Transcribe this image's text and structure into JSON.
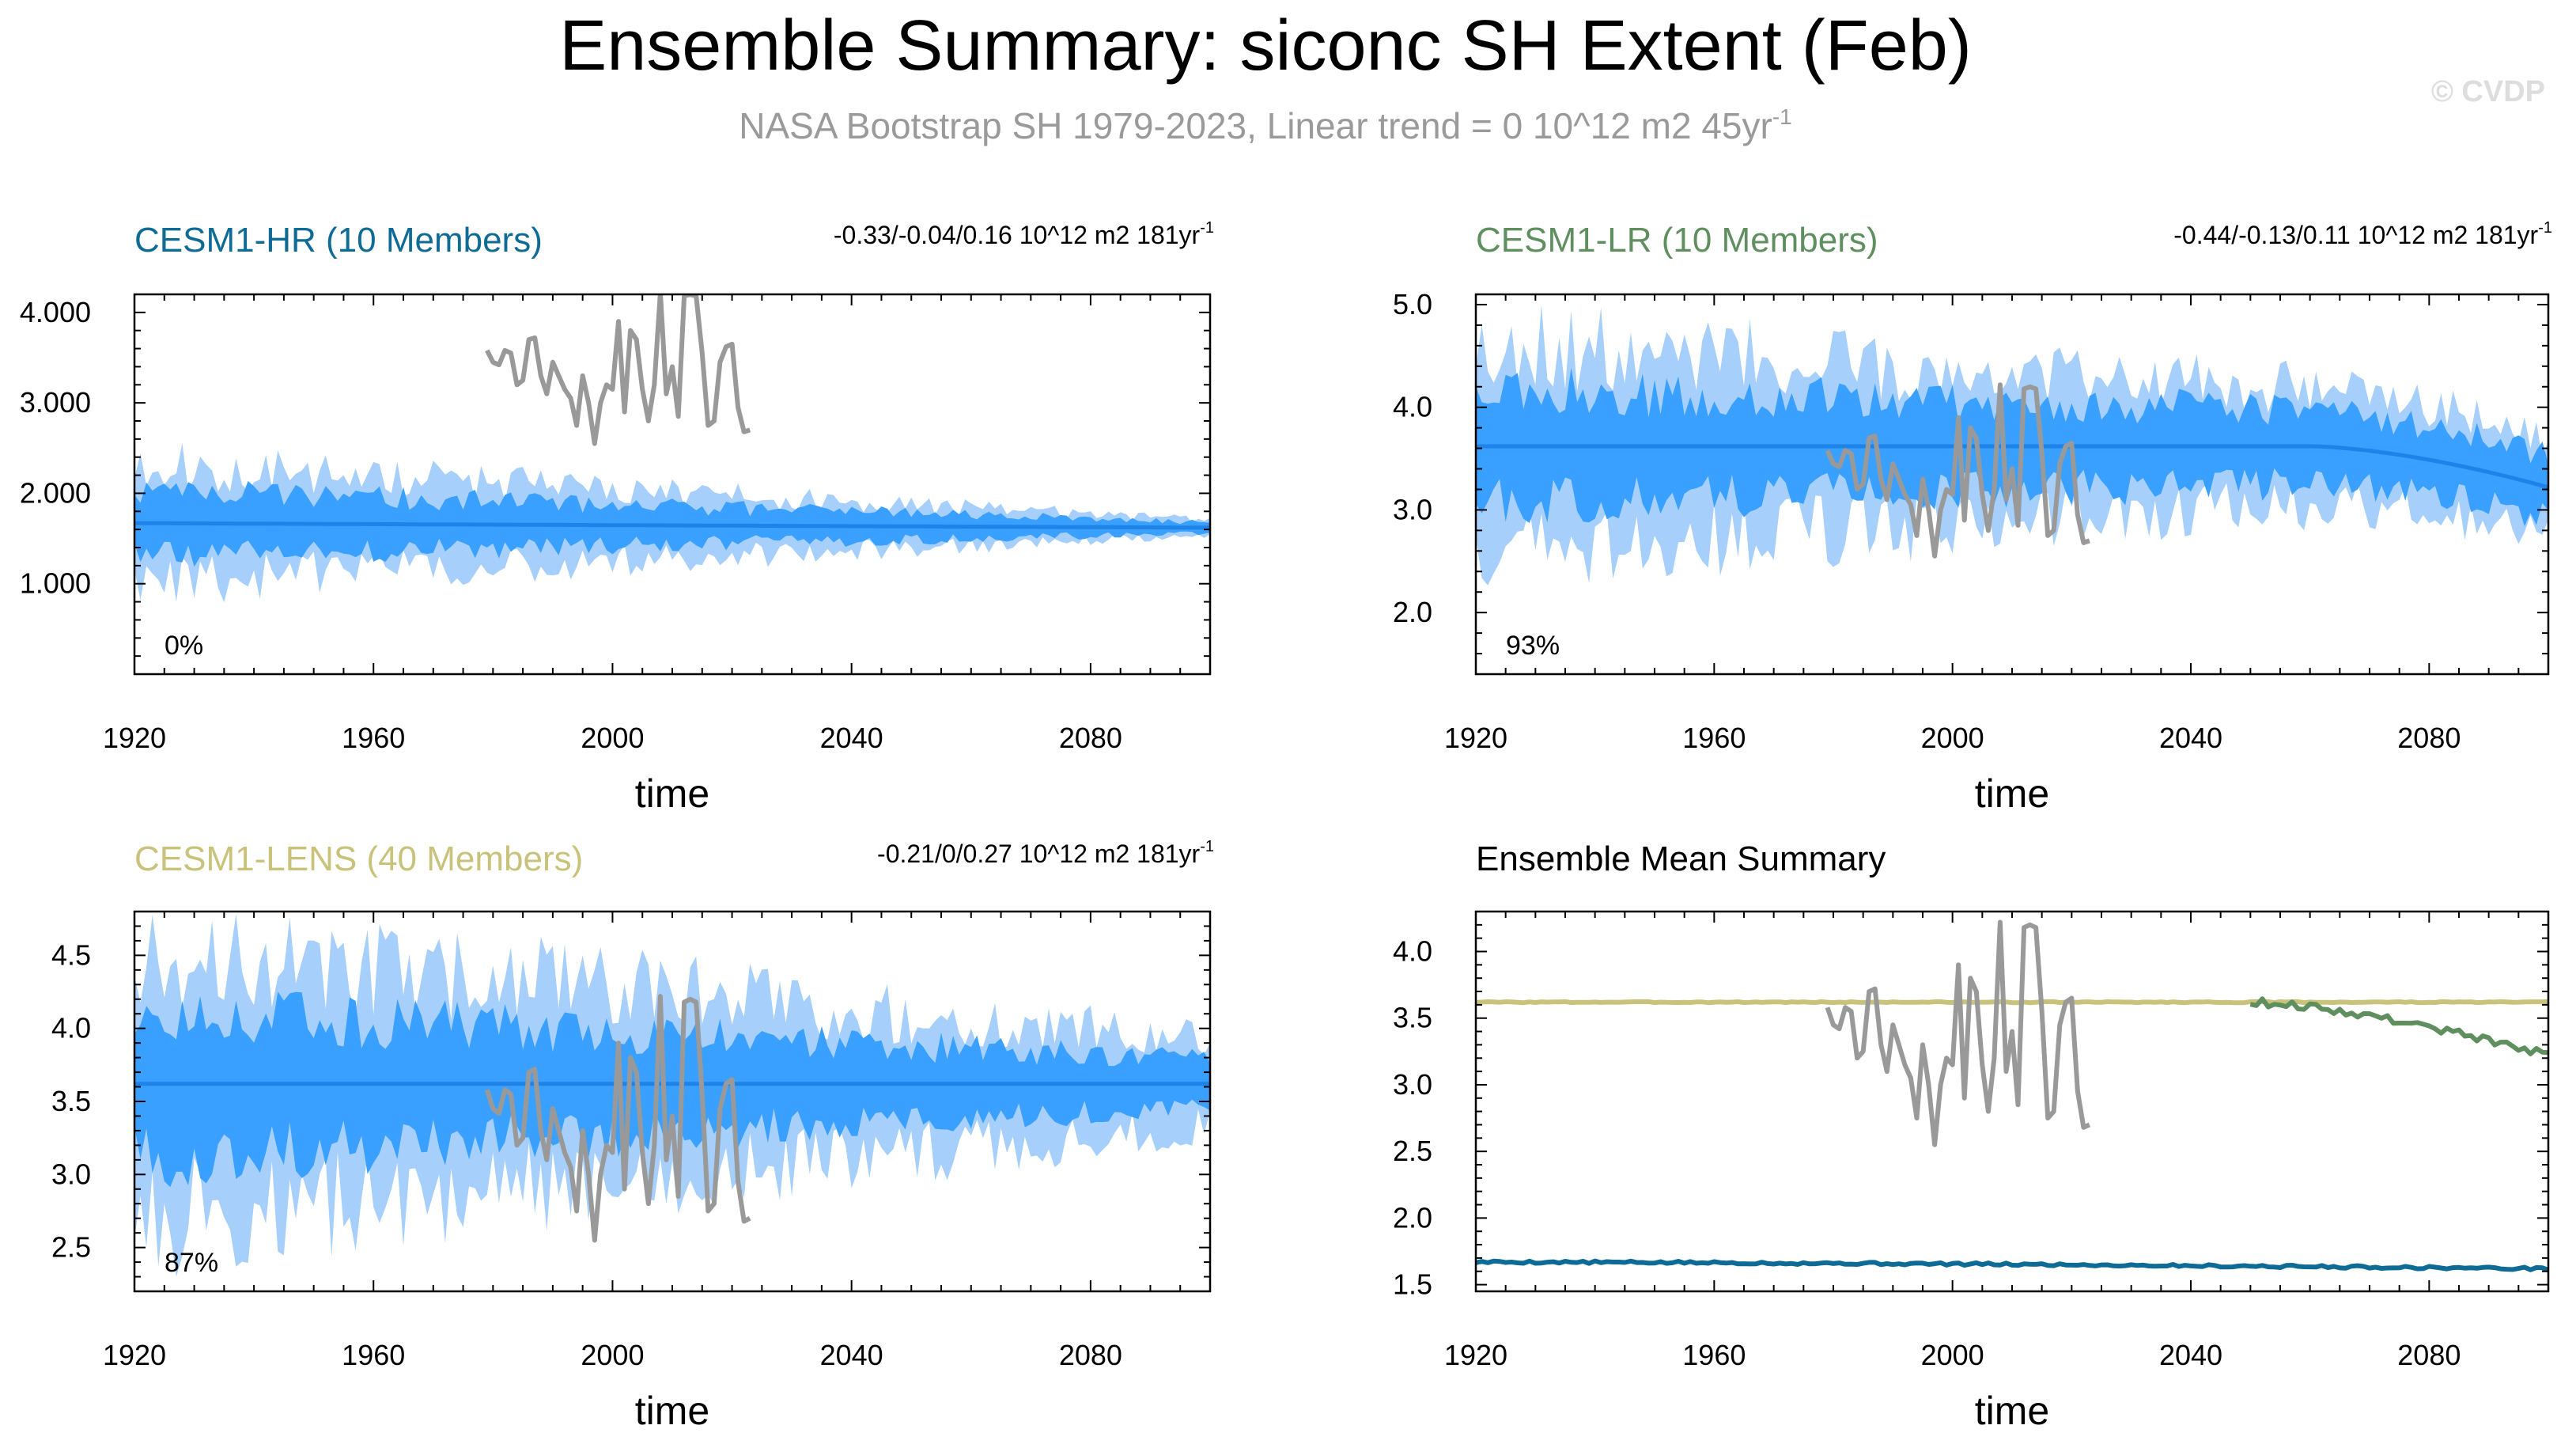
{
  "figure": {
    "title": "Ensemble Summary: siconc SH Extent (Feb)",
    "subtitle": "NASA Bootstrap SH 1979-2023, Linear trend = 0 10^12 m2 45yr",
    "subtitle_sup": "-1",
    "watermark": "© CVDP"
  },
  "colors": {
    "band_outer": "#a6d0fb",
    "band_inner": "#3aa0ff",
    "mean_line": "#1f82e8",
    "obs_line": "#999999",
    "hr": "#0d6b96",
    "lr": "#5f8f5f",
    "lens": "#c9c27a",
    "black": "#000000",
    "subtitle": "#9a9a9a",
    "watermark": "#dddddd"
  },
  "chart_data": [
    {
      "id": "hr",
      "type": "area",
      "title": "CESM1-HR (10 Members)",
      "title_color": "#0d6b96",
      "stats": "-0.33/-0.04/0.16 10^12 m2 181yr",
      "stats_sup": "-1",
      "pct": "0%",
      "xlabel": "time",
      "xlim": [
        1920,
        2100
      ],
      "xticks": [
        "1920",
        "1960",
        "2000",
        "2040",
        "2080"
      ],
      "ylim": [
        0.0,
        4.2
      ],
      "yticks": [
        {
          "v": 1.0,
          "label": "1.000"
        },
        {
          "v": 2.0,
          "label": "2.000"
        },
        {
          "v": 3.0,
          "label": "3.000"
        },
        {
          "v": 4.0,
          "label": "4.000"
        }
      ],
      "ensemble": {
        "start": 1920,
        "end": 2100,
        "mean_start": 1.67,
        "mean_end": 1.62,
        "inner_start": 0.36,
        "inner_end": 0.06,
        "outer_start": 0.65,
        "outer_end": 0.08,
        "seed": 11
      },
      "obs": {
        "start": 1979,
        "end": 2023,
        "offset": 0.0,
        "scale": 1.0
      }
    },
    {
      "id": "lr",
      "type": "area",
      "title": "CESM1-LR (10 Members)",
      "title_color": "#5f8f5f",
      "stats": "-0.44/-0.13/0.11 10^12 m2 181yr",
      "stats_sup": "-1",
      "pct": "93%",
      "xlabel": "time",
      "xlim": [
        1920,
        2100
      ],
      "xticks": [
        "1920",
        "1960",
        "2000",
        "2040",
        "2080"
      ],
      "ylim": [
        1.4,
        5.1
      ],
      "yticks": [
        {
          "v": 2.0,
          "label": "2.0"
        },
        {
          "v": 3.0,
          "label": "3.0"
        },
        {
          "v": 4.0,
          "label": "4.0"
        },
        {
          "v": 5.0,
          "label": "5.0"
        }
      ],
      "ensemble": {
        "start": 1920,
        "end": 2100,
        "mean_start": 3.62,
        "mean_end": 3.62,
        "inner_start": 0.55,
        "inner_end": 0.3,
        "outer_start": 1.0,
        "outer_end": 0.45,
        "seed": 23,
        "decline_from": 2060,
        "decline_to": 3.22
      },
      "obs": {
        "start": 1979,
        "end": 2023,
        "offset": 0.0,
        "scale": 1.0
      }
    },
    {
      "id": "lens",
      "type": "area",
      "title": "CESM1-LENS (40 Members)",
      "title_color": "#c9c27a",
      "stats": "-0.21/0/0.27 10^12 m2 181yr",
      "stats_sup": "-1",
      "pct": "87%",
      "xlabel": "time",
      "xlim": [
        1920,
        2100
      ],
      "xticks": [
        "1920",
        "1960",
        "2000",
        "2040",
        "2080"
      ],
      "ylim": [
        2.2,
        4.8
      ],
      "yticks": [
        {
          "v": 2.5,
          "label": "2.5"
        },
        {
          "v": 3.0,
          "label": "3.0"
        },
        {
          "v": 3.5,
          "label": "3.5"
        },
        {
          "v": 4.0,
          "label": "4.0"
        },
        {
          "v": 4.5,
          "label": "4.5"
        }
      ],
      "ensemble": {
        "start": 1920,
        "end": 2100,
        "mean_start": 3.62,
        "mean_end": 3.62,
        "inner_start": 0.5,
        "inner_end": 0.16,
        "outer_start": 0.95,
        "outer_end": 0.3,
        "seed": 37
      },
      "obs": {
        "start": 1979,
        "end": 2023,
        "offset": 0.0,
        "scale": 1.0
      }
    },
    {
      "id": "mean",
      "type": "line",
      "title": "Ensemble Mean Summary",
      "title_color": "#000000",
      "xlabel": "time",
      "xlim": [
        1920,
        2100
      ],
      "xticks": [
        "1920",
        "1960",
        "2000",
        "2040",
        "2080"
      ],
      "ylim": [
        1.45,
        4.3
      ],
      "yticks": [
        {
          "v": 1.5,
          "label": "1.5"
        },
        {
          "v": 2.0,
          "label": "2.0"
        },
        {
          "v": 2.5,
          "label": "2.5"
        },
        {
          "v": 3.0,
          "label": "3.0"
        },
        {
          "v": 3.5,
          "label": "3.5"
        },
        {
          "v": 4.0,
          "label": "4.0"
        }
      ],
      "series": [
        {
          "name": "CESM1-HR",
          "color": "#0d6b96",
          "start": 1920,
          "end": 2100,
          "from": 1.67,
          "to": 1.62,
          "noise": 0.01,
          "seed": 5
        },
        {
          "name": "CESM1-LR",
          "color": "#5f8f5f",
          "start": 2050,
          "end": 2100,
          "from": 3.62,
          "to": 3.22,
          "noise": 0.03,
          "seed": 9
        },
        {
          "name": "CESM1-LENS",
          "color": "#c9c27a",
          "start": 1920,
          "end": 2100,
          "from": 3.62,
          "to": 3.62,
          "noise": 0.004,
          "seed": 3
        }
      ],
      "obs": {
        "start": 1979,
        "end": 2023
      }
    }
  ],
  "obs_values": [
    3.58,
    3.45,
    3.42,
    3.58,
    3.55,
    3.2,
    3.25,
    3.7,
    3.72,
    3.3,
    3.1,
    3.45,
    3.3,
    3.15,
    3.05,
    2.75,
    3.3,
    3.0,
    2.55,
    3.0,
    3.2,
    3.15,
    3.9,
    2.9,
    3.8,
    3.7,
    3.15,
    2.8,
    3.2,
    4.22,
    3.1,
    3.4,
    2.85,
    4.18,
    4.2,
    4.18,
    3.55,
    2.75,
    2.8,
    3.45,
    3.62,
    3.65,
    2.95,
    2.68,
    2.7
  ]
}
